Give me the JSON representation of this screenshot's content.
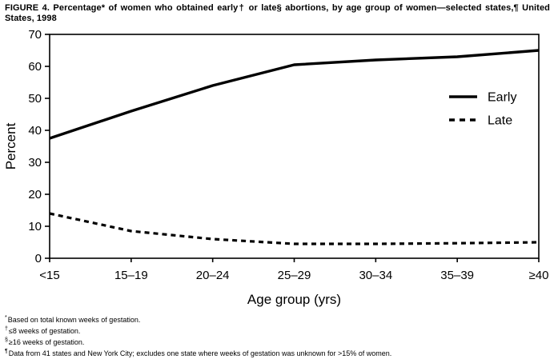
{
  "figure": {
    "title_line1": "FIGURE 4. Percentage* of women who obtained early† or late§ abortions, by age group of women—selected states,¶ United",
    "title_line2": "States, 1998",
    "footnotes": [
      {
        "marker": "*",
        "text": "Based on total known weeks of gestation."
      },
      {
        "marker": "†",
        "text": "≤8 weeks of gestation."
      },
      {
        "marker": "§",
        "text": "≥16 weeks of gestation."
      },
      {
        "marker": "¶",
        "text": "Data from 41 states and New York City; excludes one state where weeks of gestation was unknown for >15% of women."
      }
    ]
  },
  "colors": {
    "ink": "#000000",
    "background": "#ffffff"
  },
  "chart_data": {
    "type": "line",
    "categories": [
      "<15",
      "15–19",
      "20–24",
      "25–29",
      "30–34",
      "35–39",
      "≥40"
    ],
    "series": [
      {
        "name": "Early",
        "line_style": "solid",
        "values": [
          37.5,
          46,
          54,
          60.5,
          62,
          63,
          65
        ]
      },
      {
        "name": "Late",
        "line_style": "dashed",
        "values": [
          14,
          8.5,
          6,
          4.5,
          4.5,
          4.7,
          5
        ]
      }
    ],
    "xlabel": "Age group (yrs)",
    "ylabel": "Percent",
    "ylim": [
      0,
      70
    ],
    "ytick_step": 10,
    "grid": false,
    "legend": {
      "position": "inside-right",
      "entries": [
        "Early",
        "Late"
      ]
    }
  }
}
